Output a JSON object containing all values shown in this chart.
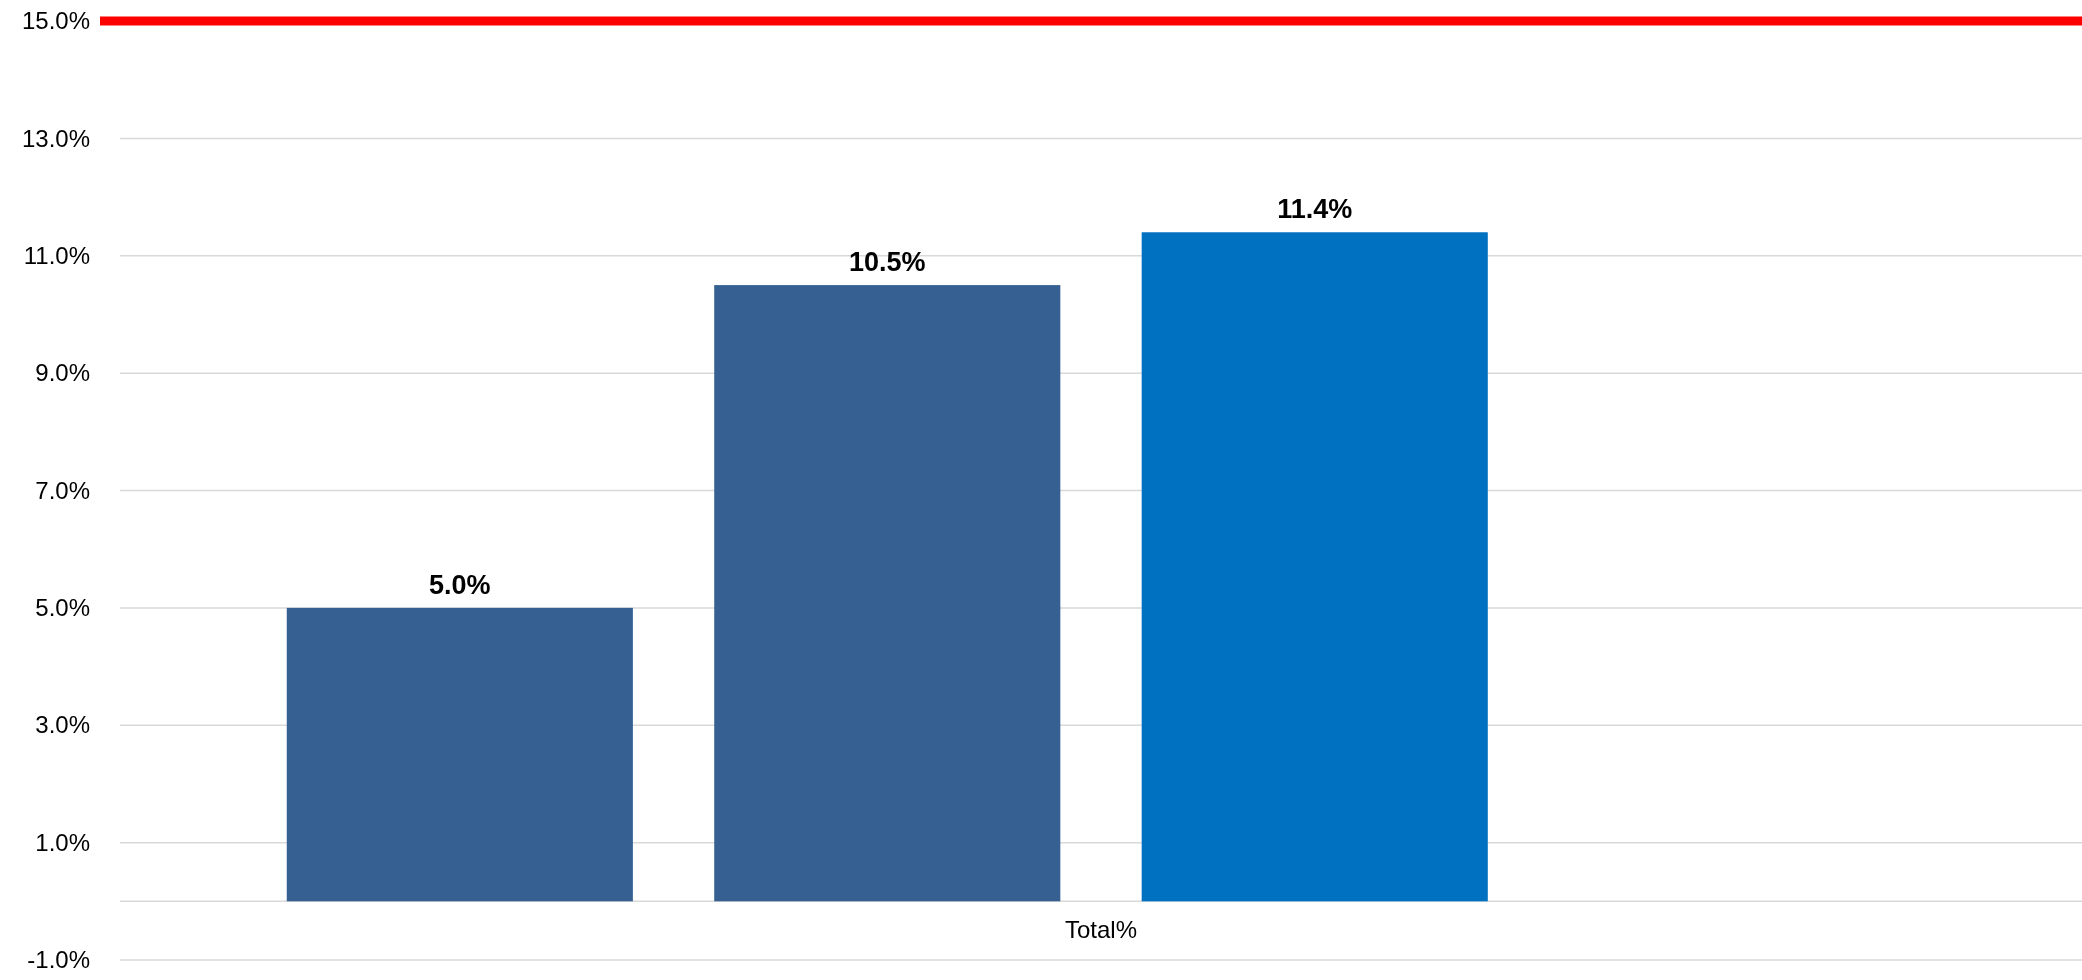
{
  "chart_data": {
    "type": "bar",
    "categories": [
      "Total%"
    ],
    "series": [
      {
        "color": "#366092",
        "values": [
          5.0
        ]
      },
      {
        "color": "#366092",
        "values": [
          10.5
        ]
      },
      {
        "color": "#0070c0",
        "values": [
          11.4
        ]
      },
      {
        "values": [
          null
        ]
      }
    ],
    "ylim": [
      -1,
      15
    ],
    "yticks": [
      {
        "value": -1,
        "label": "-1.0%"
      },
      {
        "value": 1,
        "label": "1.0%"
      },
      {
        "value": 3,
        "label": "3.0%"
      },
      {
        "value": 5,
        "label": "5.0%"
      },
      {
        "value": 7,
        "label": "7.0%"
      },
      {
        "value": 9,
        "label": "9.0%"
      },
      {
        "value": 11,
        "label": "11.0%"
      },
      {
        "value": 13,
        "label": "13.0%"
      },
      {
        "value": 15,
        "label": "15.0%"
      }
    ],
    "value_labels": [
      [
        "5.0%"
      ],
      [
        "10.5%"
      ],
      [
        "11.4%"
      ],
      [
        null
      ]
    ],
    "grid": "y",
    "ref_lines": [
      {
        "axis": "y",
        "value": 15,
        "color": "#ff0000"
      }
    ]
  }
}
